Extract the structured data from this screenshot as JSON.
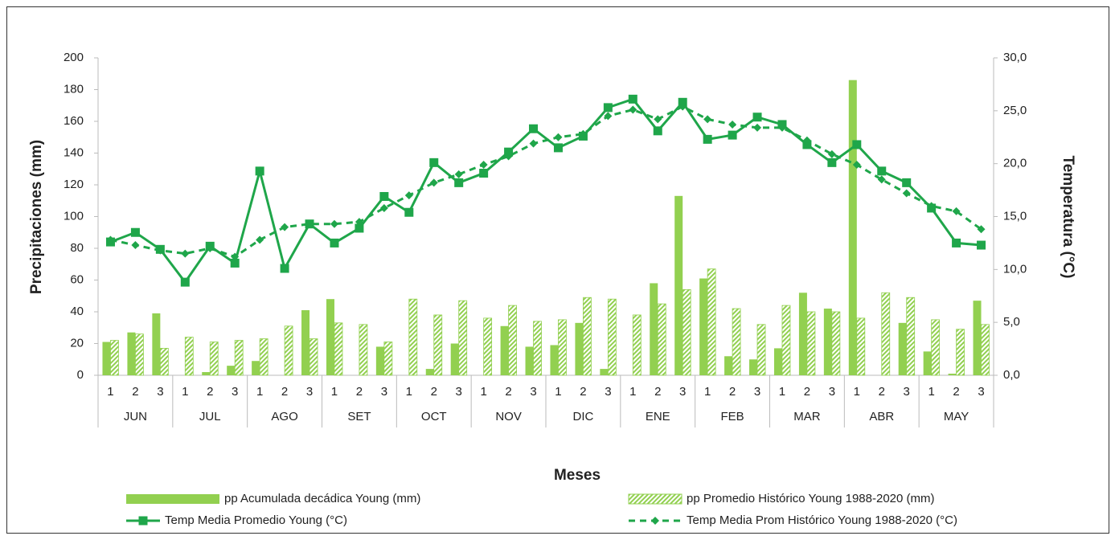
{
  "chart_data": {
    "type": "combo",
    "x_label": "Meses",
    "y_label": "Precipitaciones (mm)",
    "y2_label": "Temperatura (°C)",
    "categories": [
      "1",
      "2",
      "3",
      "1",
      "2",
      "3",
      "1",
      "2",
      "3",
      "1",
      "2",
      "3",
      "1",
      "2",
      "3",
      "1",
      "2",
      "3",
      "1",
      "2",
      "3",
      "1",
      "2",
      "3",
      "1",
      "2",
      "3",
      "1",
      "2",
      "3",
      "1",
      "2",
      "3",
      "1",
      "2",
      "3"
    ],
    "groups": [
      "JUN",
      "JUL",
      "AGO",
      "SET",
      "OCT",
      "NOV",
      "DIC",
      "ENE",
      "FEB",
      "MAR",
      "ABR",
      "MAY"
    ],
    "ylim": [
      0,
      200
    ],
    "yticks": [
      0,
      20,
      40,
      60,
      80,
      100,
      120,
      140,
      160,
      180,
      200
    ],
    "y2lim": [
      0,
      30
    ],
    "y2ticks": [
      {
        "value": 0,
        "label": "0,0"
      },
      {
        "value": 5,
        "label": "5,0"
      },
      {
        "value": 10,
        "label": "10,0"
      },
      {
        "value": 15,
        "label": "15,0"
      },
      {
        "value": 20,
        "label": "20,0"
      },
      {
        "value": 25,
        "label": "25,0"
      },
      {
        "value": 30,
        "label": "30,0"
      }
    ],
    "legend": "bottom",
    "series": [
      {
        "name": "pp Acumulada decádica Young (mm)",
        "type": "bar",
        "style": "solid",
        "color": "#92d050",
        "values": [
          21,
          27,
          39,
          0,
          2,
          6,
          9,
          0,
          41,
          48,
          0,
          18,
          0,
          4,
          20,
          0,
          31,
          18,
          19,
          33,
          4,
          0,
          58,
          113,
          61,
          12,
          10,
          17,
          52,
          42,
          186,
          0,
          33,
          15,
          1,
          47
        ]
      },
      {
        "name": "pp Promedio Histórico Young 1988-2020 (mm)",
        "type": "bar",
        "style": "hatch",
        "color": "#92d050",
        "values": [
          22,
          26,
          17,
          24,
          21,
          22,
          23,
          31,
          23,
          33,
          32,
          21,
          48,
          38,
          47,
          36,
          44,
          34,
          35,
          49,
          48,
          38,
          45,
          54,
          67,
          42,
          32,
          44,
          40,
          40,
          36,
          52,
          49,
          35,
          29,
          32
        ]
      },
      {
        "name": "Temp Media Promedio Young (°C)",
        "type": "line",
        "style": "solid",
        "marker": "square",
        "color": "#1fa64a",
        "axis": "y2",
        "values": [
          12.6,
          13.5,
          11.9,
          8.8,
          12.2,
          10.6,
          19.3,
          10.1,
          14.3,
          12.5,
          13.9,
          16.9,
          15.4,
          20.1,
          18.2,
          19.1,
          21.1,
          23.3,
          21.5,
          22.6,
          25.3,
          26.1,
          23.1,
          25.8,
          22.3,
          22.7,
          24.4,
          23.7,
          21.8,
          20.1,
          21.8,
          19.3,
          18.2,
          15.8,
          12.5,
          12.3
        ]
      },
      {
        "name": "Temp Media Prom Histórico Young 1988-2020 (°C)",
        "type": "line",
        "style": "dashed",
        "marker": "diamond",
        "color": "#1fa64a",
        "axis": "y2",
        "values": [
          12.8,
          12.3,
          11.8,
          11.5,
          12.0,
          11.2,
          12.8,
          14.0,
          14.3,
          14.3,
          14.5,
          15.8,
          17.0,
          18.2,
          19.0,
          19.9,
          20.7,
          21.9,
          22.5,
          22.8,
          24.5,
          25.1,
          24.2,
          25.4,
          24.2,
          23.7,
          23.4,
          23.4,
          22.2,
          20.9,
          19.9,
          18.5,
          17.2,
          16.0,
          15.5,
          13.8
        ]
      }
    ]
  }
}
